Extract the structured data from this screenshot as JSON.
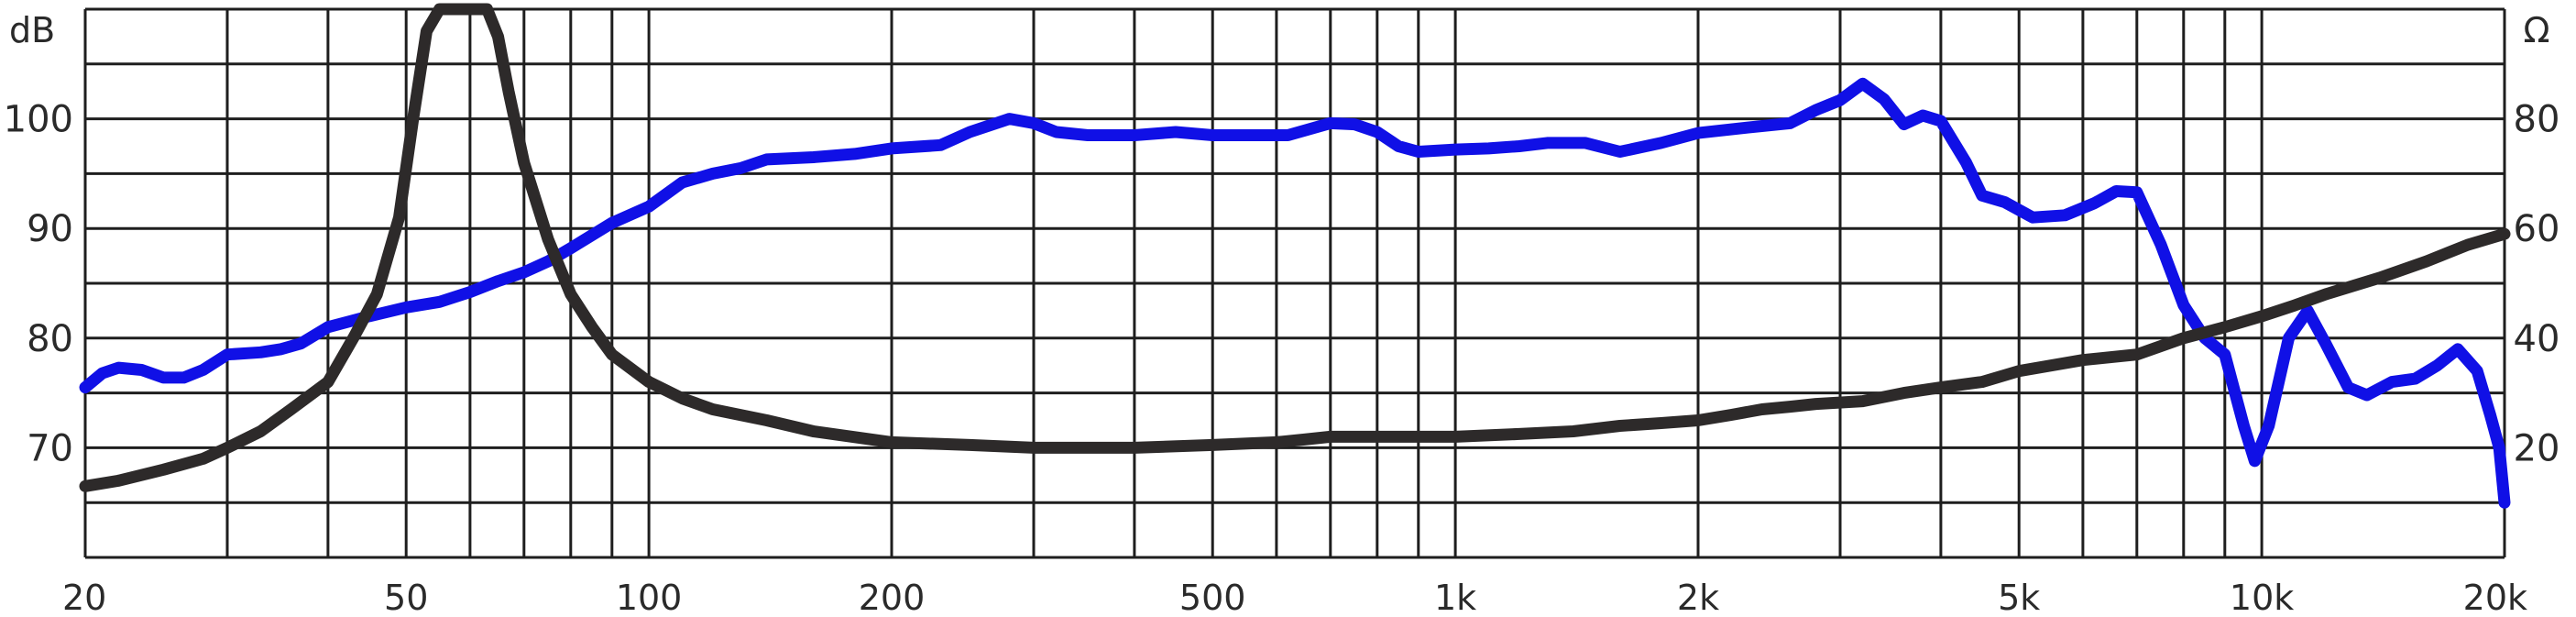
{
  "chart_data": {
    "type": "line",
    "x_scale": "log",
    "xlim": [
      20,
      20000
    ],
    "x_ticks": [
      {
        "value": 20,
        "label": "20"
      },
      {
        "value": 50,
        "label": "50"
      },
      {
        "value": 100,
        "label": "100"
      },
      {
        "value": 200,
        "label": "200"
      },
      {
        "value": 500,
        "label": "500"
      },
      {
        "value": 1000,
        "label": "1k"
      },
      {
        "value": 2000,
        "label": "2k"
      },
      {
        "value": 5000,
        "label": "5k"
      },
      {
        "value": 10000,
        "label": "10k"
      },
      {
        "value": 20000,
        "label": "20k"
      }
    ],
    "left_axis": {
      "unit_label": "dB",
      "ylim": [
        60,
        110
      ],
      "ticks": [
        {
          "value": 70,
          "label": "70"
        },
        {
          "value": 80,
          "label": "80"
        },
        {
          "value": 90,
          "label": "90"
        },
        {
          "value": 100,
          "label": "100"
        }
      ]
    },
    "right_axis": {
      "unit_label": "Ω",
      "ylim": [
        0,
        100
      ],
      "ticks": [
        {
          "value": 20,
          "label": "20"
        },
        {
          "value": 40,
          "label": "40"
        },
        {
          "value": 60,
          "label": "60"
        },
        {
          "value": 80,
          "label": "80"
        }
      ]
    },
    "grid": true,
    "series": [
      {
        "axis": "left",
        "color": "#1010e6",
        "points": [
          [
            20,
            75.5
          ],
          [
            21,
            76.8
          ],
          [
            22,
            77.3
          ],
          [
            23.5,
            77.1
          ],
          [
            25,
            76.4
          ],
          [
            26.5,
            76.4
          ],
          [
            28,
            77.1
          ],
          [
            30,
            78.5
          ],
          [
            33,
            78.7
          ],
          [
            35,
            79.0
          ],
          [
            37,
            79.5
          ],
          [
            40,
            81.0
          ],
          [
            45,
            82.0
          ],
          [
            50,
            82.8
          ],
          [
            55,
            83.3
          ],
          [
            60,
            84.2
          ],
          [
            65,
            85.2
          ],
          [
            70,
            86.0
          ],
          [
            75,
            87.0
          ],
          [
            80,
            88.2
          ],
          [
            90,
            90.5
          ],
          [
            100,
            92.0
          ],
          [
            110,
            94.2
          ],
          [
            120,
            95.0
          ],
          [
            130,
            95.5
          ],
          [
            140,
            96.3
          ],
          [
            160,
            96.5
          ],
          [
            180,
            96.8
          ],
          [
            200,
            97.3
          ],
          [
            230,
            97.6
          ],
          [
            250,
            98.8
          ],
          [
            280,
            100.0
          ],
          [
            300,
            99.6
          ],
          [
            320,
            98.8
          ],
          [
            350,
            98.5
          ],
          [
            400,
            98.5
          ],
          [
            450,
            98.8
          ],
          [
            500,
            98.5
          ],
          [
            550,
            98.5
          ],
          [
            620,
            98.5
          ],
          [
            700,
            99.6
          ],
          [
            750,
            99.5
          ],
          [
            800,
            98.8
          ],
          [
            850,
            97.5
          ],
          [
            900,
            97.0
          ],
          [
            1000,
            97.2
          ],
          [
            1100,
            97.3
          ],
          [
            1200,
            97.5
          ],
          [
            1300,
            97.8
          ],
          [
            1450,
            97.8
          ],
          [
            1600,
            97.0
          ],
          [
            1800,
            97.8
          ],
          [
            2000,
            98.7
          ],
          [
            2300,
            99.2
          ],
          [
            2600,
            99.6
          ],
          [
            2800,
            100.8
          ],
          [
            3000,
            101.7
          ],
          [
            3200,
            103.2
          ],
          [
            3400,
            101.8
          ],
          [
            3600,
            99.5
          ],
          [
            3800,
            100.3
          ],
          [
            4000,
            99.8
          ],
          [
            4300,
            96.0
          ],
          [
            4500,
            93.0
          ],
          [
            4800,
            92.4
          ],
          [
            5200,
            91.0
          ],
          [
            5700,
            91.2
          ],
          [
            6200,
            92.3
          ],
          [
            6600,
            93.4
          ],
          [
            7000,
            93.3
          ],
          [
            7500,
            88.5
          ],
          [
            8000,
            83.0
          ],
          [
            8500,
            80.0
          ],
          [
            9000,
            78.5
          ],
          [
            9500,
            72.0
          ],
          [
            9800,
            68.8
          ],
          [
            10200,
            72.0
          ],
          [
            10800,
            80.0
          ],
          [
            11400,
            82.5
          ],
          [
            12000,
            79.5
          ],
          [
            12800,
            75.5
          ],
          [
            13500,
            74.8
          ],
          [
            14500,
            76.0
          ],
          [
            15500,
            76.3
          ],
          [
            16500,
            77.5
          ],
          [
            17500,
            79.0
          ],
          [
            18500,
            77.0
          ],
          [
            19200,
            73.0
          ],
          [
            19700,
            70.0
          ],
          [
            20000,
            65.0
          ]
        ]
      },
      {
        "axis": "right",
        "color": "#2d2a2a",
        "points": [
          [
            20,
            13
          ],
          [
            22,
            14
          ],
          [
            25,
            16
          ],
          [
            28,
            18
          ],
          [
            30,
            20
          ],
          [
            33,
            23
          ],
          [
            36,
            27
          ],
          [
            40,
            32
          ],
          [
            43,
            40
          ],
          [
            46,
            48
          ],
          [
            49,
            62
          ],
          [
            51,
            80
          ],
          [
            53,
            96
          ],
          [
            55,
            100
          ],
          [
            57,
            100
          ],
          [
            60,
            100
          ],
          [
            63,
            100
          ],
          [
            65,
            95
          ],
          [
            67,
            85
          ],
          [
            70,
            72
          ],
          [
            75,
            58
          ],
          [
            80,
            48
          ],
          [
            85,
            42
          ],
          [
            90,
            37
          ],
          [
            100,
            32
          ],
          [
            110,
            29
          ],
          [
            120,
            27
          ],
          [
            140,
            25
          ],
          [
            160,
            23
          ],
          [
            200,
            21
          ],
          [
            250,
            20.5
          ],
          [
            300,
            20
          ],
          [
            400,
            20
          ],
          [
            500,
            20.5
          ],
          [
            600,
            21
          ],
          [
            650,
            21.5
          ],
          [
            700,
            22
          ],
          [
            800,
            22
          ],
          [
            900,
            22
          ],
          [
            1000,
            22
          ],
          [
            1200,
            22.5
          ],
          [
            1400,
            23
          ],
          [
            1600,
            24
          ],
          [
            1800,
            24.5
          ],
          [
            2000,
            25
          ],
          [
            2200,
            26
          ],
          [
            2400,
            27
          ],
          [
            2600,
            27.5
          ],
          [
            2800,
            28
          ],
          [
            3200,
            28.5
          ],
          [
            3600,
            30
          ],
          [
            4000,
            31
          ],
          [
            4500,
            32
          ],
          [
            5000,
            34
          ],
          [
            6000,
            36
          ],
          [
            7000,
            37
          ],
          [
            8000,
            40
          ],
          [
            9000,
            42
          ],
          [
            10000,
            44
          ],
          [
            11000,
            46
          ],
          [
            12000,
            48
          ],
          [
            14000,
            51
          ],
          [
            16000,
            54
          ],
          [
            18000,
            57
          ],
          [
            20000,
            59
          ]
        ]
      }
    ]
  }
}
